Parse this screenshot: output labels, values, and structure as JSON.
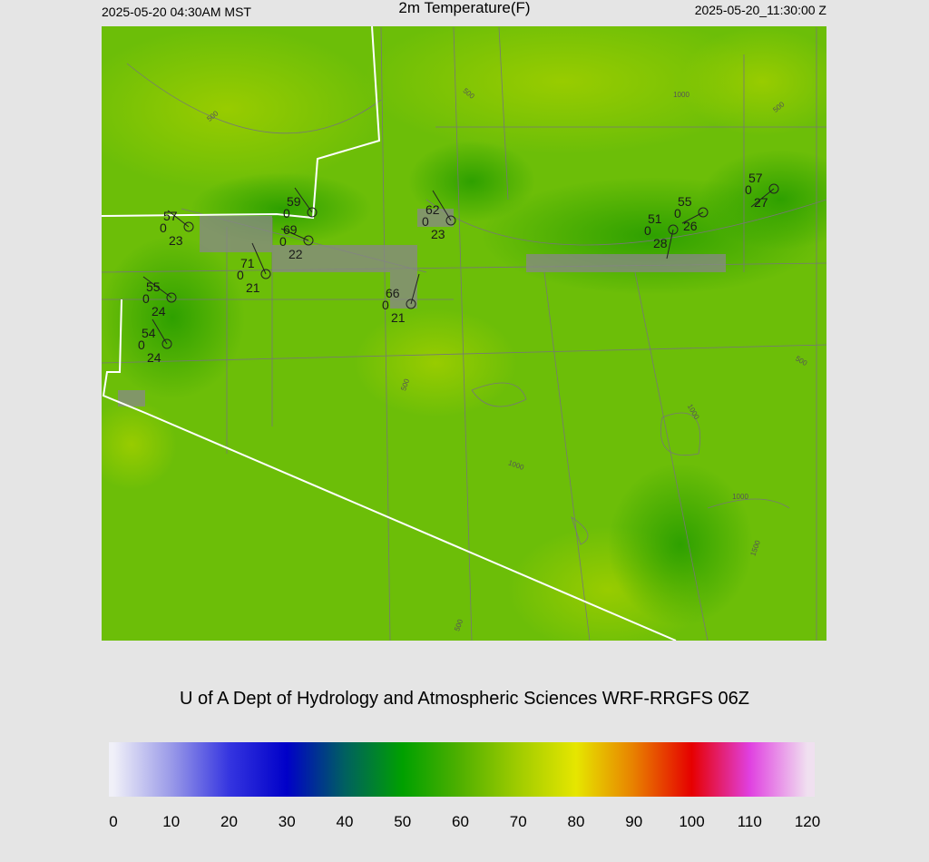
{
  "header": {
    "left": "2025-05-20 04:30AM MST",
    "title": "2m Temperature(F)",
    "right": "2025-05-20_11:30:00 Z"
  },
  "credit": "U of A Dept of Hydrology and Atmospheric Sciences WRF-RRGFS 06Z",
  "stations": [
    {
      "temp": 57,
      "calm": 0,
      "dew": 23
    },
    {
      "temp": 59,
      "calm": 0
    },
    {
      "temp": 69,
      "calm": 0,
      "dew": 22
    },
    {
      "temp": 71,
      "calm": 0,
      "dew": 21
    },
    {
      "temp": 62,
      "calm": 0,
      "dew": 23
    },
    {
      "temp": 66,
      "calm": 0,
      "dew": 21
    },
    {
      "temp": 55,
      "calm": 0,
      "dew": 24
    },
    {
      "temp": 54,
      "calm": 0,
      "dew": 24
    },
    {
      "temp": 51,
      "calm": 0,
      "dew": 28
    },
    {
      "temp": 55,
      "calm": 0,
      "dew": 26
    },
    {
      "temp": 57,
      "calm": 0,
      "dew": 27
    }
  ],
  "contour_labels": [
    500,
    500,
    1000,
    500,
    500,
    500,
    1000,
    1000,
    1000,
    1500,
    500
  ],
  "colorbar": {
    "ticks": [
      0,
      10,
      20,
      30,
      40,
      50,
      60,
      70,
      80,
      90,
      100,
      110,
      120
    ],
    "colors": [
      "#f0f0f8",
      "#9a9ae8",
      "#3535e0",
      "#0000c8",
      "#006060",
      "#00a000",
      "#50b000",
      "#a0cc00",
      "#e6e600",
      "#e88000",
      "#e60000",
      "#e040e0",
      "#f0e0f0"
    ]
  }
}
